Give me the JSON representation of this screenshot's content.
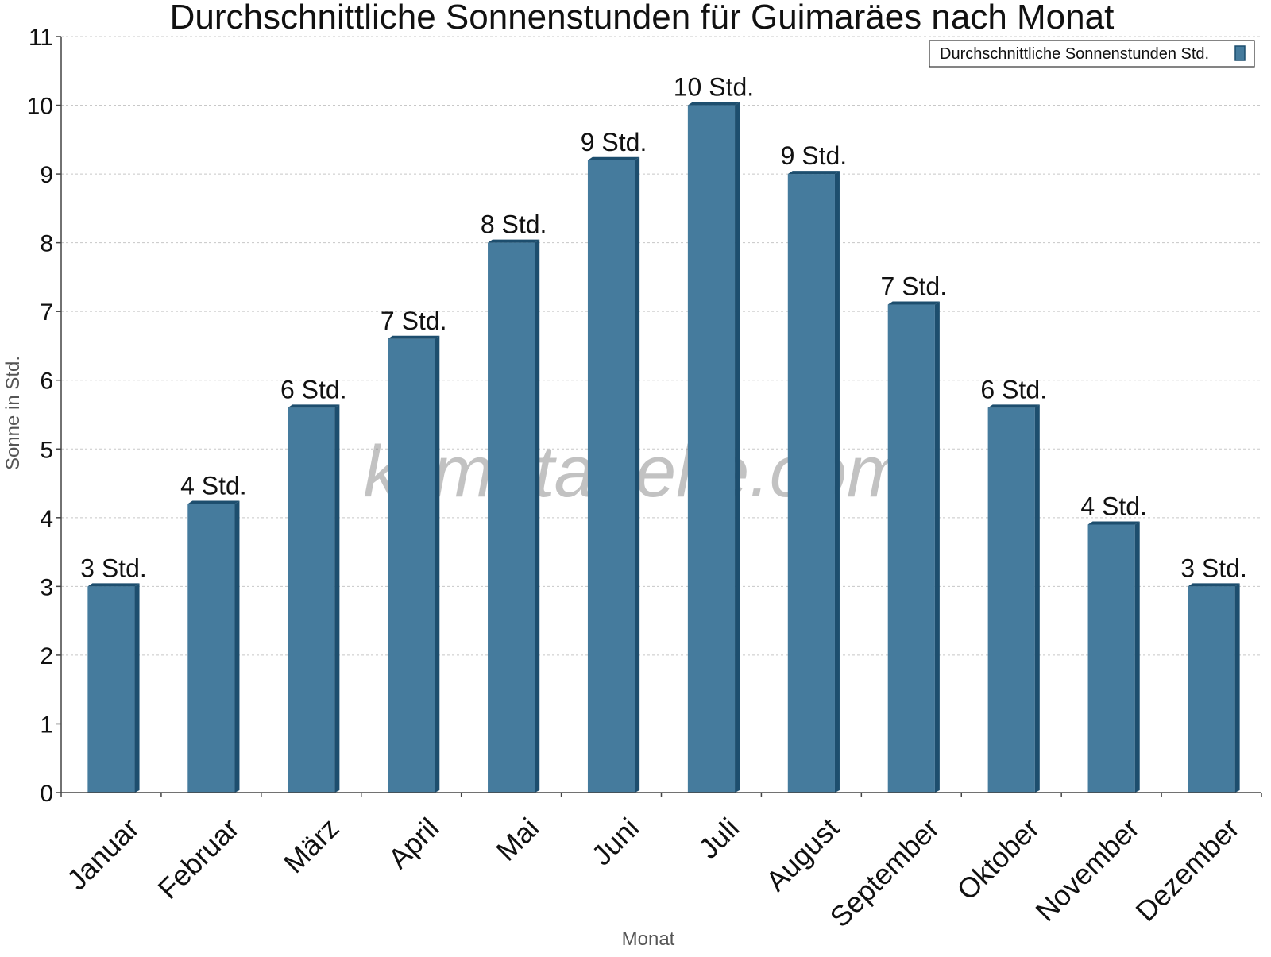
{
  "chart_data": {
    "type": "bar",
    "title": "Durchschnittliche Sonnenstunden für Guimaräes nach Monat",
    "xlabel": "Monat",
    "ylabel": "Sonne in Std.",
    "ylim": [
      0,
      11
    ],
    "yticks": [
      0,
      1,
      2,
      3,
      4,
      5,
      6,
      7,
      8,
      9,
      10,
      11
    ],
    "grid": true,
    "legend_position": "top-right",
    "categories": [
      "Januar",
      "Februar",
      "März",
      "April",
      "Mai",
      "Juni",
      "Juli",
      "August",
      "September",
      "Oktober",
      "November",
      "Dezember"
    ],
    "series": [
      {
        "name": "Durchschnittliche Sonnenstunden Std.",
        "color": "#457b9d",
        "side_color": "#1d4e6e",
        "values": [
          3.0,
          4.2,
          5.6,
          6.6,
          8.0,
          9.2,
          10.0,
          9.0,
          7.1,
          5.6,
          3.9,
          3.0
        ],
        "labels": [
          "3 Std.",
          "4 Std.",
          "6 Std.",
          "7 Std.",
          "8 Std.",
          "9 Std.",
          "10 Std.",
          "9 Std.",
          "7 Std.",
          "6 Std.",
          "4 Std.",
          "3 Std."
        ]
      }
    ]
  },
  "watermark": "klimatabelle.com"
}
